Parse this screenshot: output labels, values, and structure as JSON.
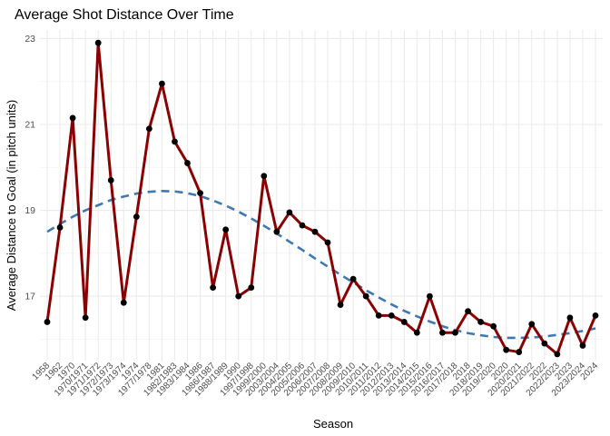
{
  "chart_data": {
    "type": "line",
    "title": "Average Shot Distance Over Time",
    "xlabel": "Season",
    "ylabel": "Average Distance to Goal (in pitch units)",
    "ylim": [
      15.5,
      23.2
    ],
    "y_ticks": [
      17,
      19,
      21,
      23
    ],
    "grid": true,
    "legend": "none",
    "categories": [
      "1958",
      "1962",
      "1970",
      "1970/1971",
      "1971/1972",
      "1972/1973",
      "1973/1974",
      "1974",
      "1977/1978",
      "1981",
      "1982/1983",
      "1983/1984",
      "1986",
      "1986/1987",
      "1988/1989",
      "1990",
      "1997/1998",
      "1999/2000",
      "2003/2004",
      "2004/2005",
      "2005/2006",
      "2006/2007",
      "2007/2008",
      "2008/2009",
      "2009/2010",
      "2010/2011",
      "2011/2012",
      "2012/2013",
      "2013/2014",
      "2014/2015",
      "2015/2016",
      "2016/2017",
      "2017/2018",
      "2018",
      "2018/2019",
      "2019/2020",
      "2020",
      "2020/2021",
      "2021/2022",
      "2022",
      "2022/2023",
      "2023",
      "2023/2024",
      "2024"
    ],
    "series": [
      {
        "style": "solid",
        "color": "#8b0000",
        "markers": true,
        "values": [
          16.4,
          18.6,
          21.15,
          16.5,
          22.9,
          19.7,
          16.85,
          18.85,
          20.9,
          21.95,
          20.6,
          20.1,
          19.4,
          17.2,
          18.55,
          17.0,
          17.2,
          19.8,
          18.5,
          18.95,
          18.65,
          18.5,
          18.25,
          16.8,
          17.4,
          17.0,
          16.55,
          16.55,
          16.4,
          16.15,
          17.0,
          16.15,
          16.15,
          16.65,
          16.4,
          16.3,
          15.75,
          15.7,
          16.35,
          15.9,
          15.65,
          16.5,
          15.85,
          16.55
        ]
      },
      {
        "style": "dashed",
        "color": "#4078b0",
        "markers": false,
        "values": [
          18.5,
          18.68,
          18.85,
          19.0,
          19.12,
          19.24,
          19.32,
          19.39,
          19.43,
          19.45,
          19.44,
          19.4,
          19.33,
          19.23,
          19.11,
          18.97,
          18.81,
          18.64,
          18.46,
          18.27,
          18.08,
          17.88,
          17.69,
          17.5,
          17.32,
          17.14,
          16.97,
          16.81,
          16.66,
          16.53,
          16.41,
          16.3,
          16.21,
          16.14,
          16.09,
          16.05,
          16.03,
          16.03,
          16.04,
          16.06,
          16.1,
          16.14,
          16.19,
          16.25
        ]
      }
    ]
  }
}
